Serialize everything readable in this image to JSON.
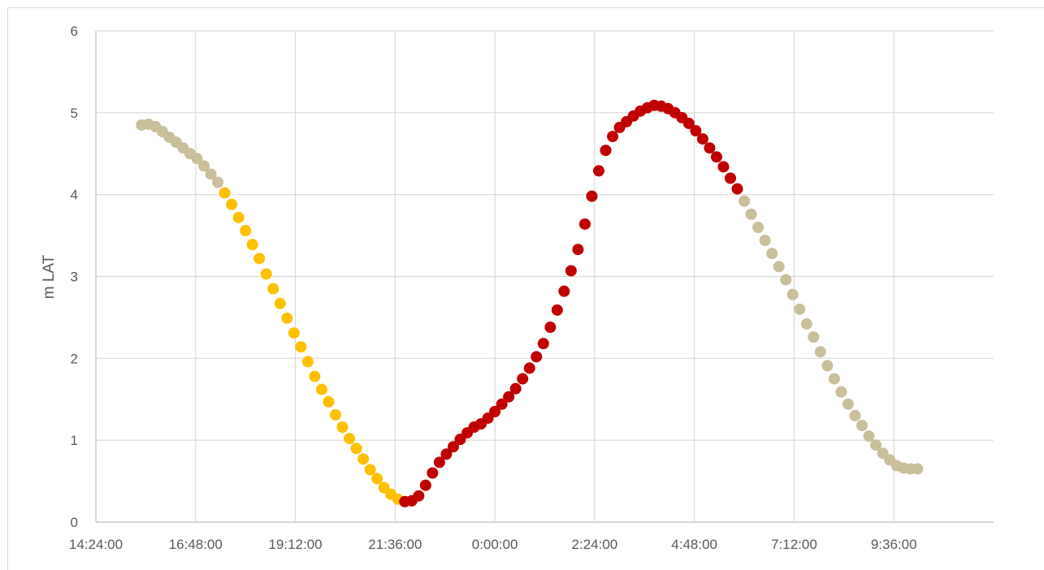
{
  "chart_data": {
    "type": "scatter",
    "title": "",
    "xlabel": "",
    "ylabel": "m LAT",
    "xlim": [
      "14:24:00",
      "12:00:00"
    ],
    "ylim": [
      0,
      6
    ],
    "x_ticks": [
      "14:24:00",
      "16:48:00",
      "19:12:00",
      "21:36:00",
      "0:00:00",
      "2:24:00",
      "4:48:00",
      "7:12:00",
      "9:36:00"
    ],
    "y_ticks": [
      "0",
      "1",
      "2",
      "3",
      "4",
      "5",
      "6"
    ],
    "grid": true,
    "legend": "none",
    "series": [
      {
        "color": "#c9bf9b",
        "x": [
          "15:30:00",
          "15:40:00",
          "15:50:00",
          "16:00:00",
          "16:10:00",
          "16:20:00",
          "16:30:00",
          "16:40:00",
          "16:50:00",
          "17:00:00",
          "17:10:00",
          "17:20:00"
        ],
        "values": [
          4.85,
          4.86,
          4.83,
          4.77,
          4.7,
          4.64,
          4.57,
          4.5,
          4.44,
          4.35,
          4.25,
          4.15
        ]
      },
      {
        "color": "#ffc000",
        "x": [
          "17:30:00",
          "17:40:00",
          "17:50:00",
          "18:00:00",
          "18:10:00",
          "18:20:00",
          "18:30:00",
          "18:40:00",
          "18:50:00",
          "19:00:00",
          "19:10:00",
          "19:20:00",
          "19:30:00",
          "19:40:00",
          "19:50:00",
          "20:00:00",
          "20:10:00",
          "20:20:00",
          "20:30:00",
          "20:40:00",
          "20:50:00",
          "21:00:00",
          "21:10:00",
          "21:20:00",
          "21:30:00",
          "21:40:00"
        ],
        "values": [
          4.02,
          3.88,
          3.72,
          3.56,
          3.39,
          3.22,
          3.03,
          2.85,
          2.67,
          2.49,
          2.31,
          2.14,
          1.96,
          1.78,
          1.62,
          1.47,
          1.31,
          1.16,
          1.02,
          0.9,
          0.77,
          0.64,
          0.53,
          0.42,
          0.34,
          0.28
        ]
      },
      {
        "color": "#c00000",
        "x": [
          "21:50:00",
          "22:00:00",
          "22:10:00",
          "22:20:00",
          "22:30:00",
          "22:40:00",
          "22:50:00",
          "23:00:00",
          "23:10:00",
          "23:20:00",
          "23:30:00",
          "23:40:00",
          "23:50:00",
          "0:00:00",
          "0:10:00",
          "0:20:00",
          "0:30:00",
          "0:40:00",
          "0:50:00",
          "1:00:00",
          "1:10:00",
          "1:20:00",
          "1:30:00",
          "1:40:00",
          "1:50:00",
          "2:00:00",
          "2:10:00",
          "2:20:00",
          "2:30:00",
          "2:40:00",
          "2:50:00",
          "3:00:00",
          "3:10:00",
          "3:20:00",
          "3:30:00",
          "3:40:00",
          "3:50:00",
          "4:00:00",
          "4:10:00",
          "4:20:00",
          "4:30:00",
          "4:40:00",
          "4:50:00",
          "5:00:00",
          "5:10:00",
          "5:20:00",
          "5:30:00",
          "5:40:00",
          "5:50:00"
        ],
        "values": [
          0.25,
          0.26,
          0.32,
          0.45,
          0.6,
          0.73,
          0.83,
          0.92,
          1.01,
          1.09,
          1.16,
          1.2,
          1.27,
          1.35,
          1.44,
          1.53,
          1.63,
          1.75,
          1.88,
          2.02,
          2.18,
          2.38,
          2.59,
          2.82,
          3.07,
          3.33,
          3.64,
          3.98,
          4.29,
          4.54,
          4.71,
          4.82,
          4.89,
          4.96,
          5.02,
          5.06,
          5.09,
          5.08,
          5.05,
          5.0,
          4.94,
          4.87,
          4.78,
          4.68,
          4.57,
          4.46,
          4.34,
          4.2,
          4.07
        ]
      },
      {
        "color": "#c9bf9b",
        "x": [
          "6:00:00",
          "6:10:00",
          "6:20:00",
          "6:30:00",
          "6:40:00",
          "6:50:00",
          "7:00:00",
          "7:10:00",
          "7:20:00",
          "7:30:00",
          "7:40:00",
          "7:50:00",
          "8:00:00",
          "8:10:00",
          "8:20:00",
          "8:30:00",
          "8:40:00",
          "8:50:00",
          "9:00:00",
          "9:10:00",
          "9:20:00",
          "9:30:00",
          "9:40:00",
          "9:50:00",
          "10:00:00",
          "10:10:00"
        ],
        "values": [
          3.92,
          3.76,
          3.6,
          3.44,
          3.28,
          3.12,
          2.96,
          2.78,
          2.6,
          2.42,
          2.26,
          2.08,
          1.91,
          1.75,
          1.59,
          1.44,
          1.3,
          1.18,
          1.05,
          0.94,
          0.84,
          0.76,
          0.69,
          0.66,
          0.65,
          0.65
        ]
      }
    ]
  }
}
